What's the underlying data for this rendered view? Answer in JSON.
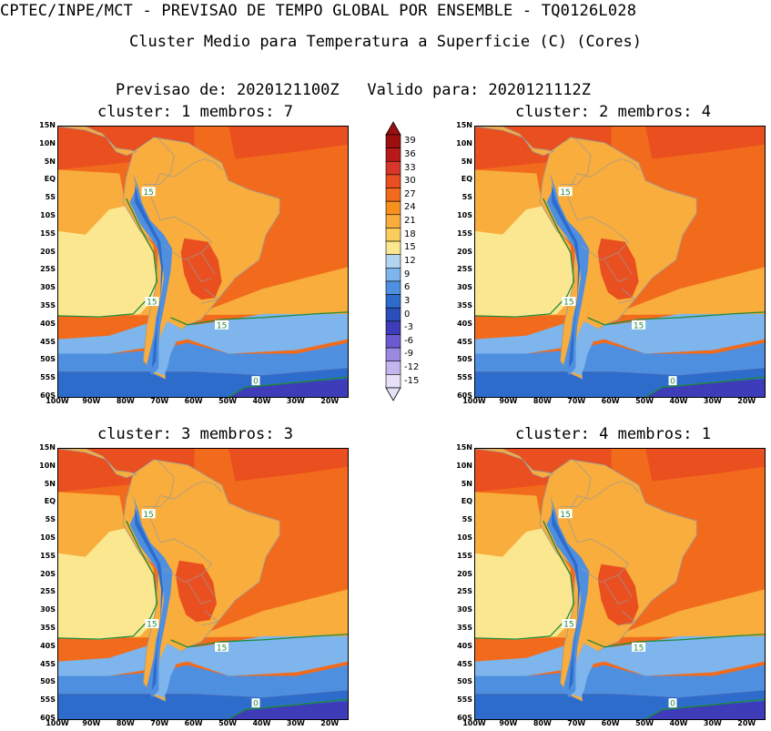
{
  "header": {
    "title": "CPTEC/INPE/MCT - PREVISAO DE TEMPO GLOBAL POR ENSEMBLE - TQ0126L028",
    "subtitle": "Cluster Medio para Temperatura a Superficie (C) (Cores)",
    "forecast_label": "Previsao de: 2020121100Z",
    "valid_label": "Valido para: 2020121112Z"
  },
  "panels": [
    {
      "title": "cluster: 1   membros: 7"
    },
    {
      "title": "cluster: 2   membros: 4"
    },
    {
      "title": "cluster: 3   membros: 3"
    },
    {
      "title": "cluster: 4   membros: 1"
    }
  ],
  "axes": {
    "lat_labels": [
      "15N",
      "10N",
      "5N",
      "EQ",
      "5S",
      "10S",
      "15S",
      "20S",
      "25S",
      "30S",
      "35S",
      "40S",
      "45S",
      "50S",
      "55S",
      "60S"
    ],
    "lon_labels": [
      "100W",
      "90W",
      "80W",
      "70W",
      "60W",
      "50W",
      "40W",
      "30W",
      "20W"
    ]
  },
  "contour_labels": [
    "15",
    "15",
    "15",
    "0"
  ],
  "colorbar": {
    "levels": [
      "39",
      "36",
      "33",
      "30",
      "27",
      "24",
      "21",
      "18",
      "15",
      "12",
      "9",
      "6",
      "3",
      "0",
      "-3",
      "-6",
      "-9",
      "-12",
      "-15"
    ],
    "colors": [
      "#9b0f0f",
      "#b81a1a",
      "#d8352b",
      "#ea4f20",
      "#f26b1c",
      "#f6911f",
      "#f8ad3c",
      "#fbcc5e",
      "#fbe78f",
      "#b3d5f2",
      "#7db5ec",
      "#4f8fe0",
      "#2e6ccc",
      "#2b4fb8",
      "#3e3cb8",
      "#6c5bd0",
      "#9a89e0",
      "#c2b6ee",
      "#e6e0f8"
    ]
  },
  "colors": {
    "ocean_warm": "#f26b1c",
    "ocean_hot": "#ea4f20",
    "land_mid": "#f8ad3c",
    "land_hot": "#ea4f20",
    "cool_sea": "#fbe78f",
    "cold_1": "#7db5ec",
    "cold_2": "#4f8fe0",
    "cold_3": "#2e6ccc",
    "cold_4": "#3e3cb8",
    "contour": "#1f8a3a",
    "coast": "#9a9a9a"
  }
}
